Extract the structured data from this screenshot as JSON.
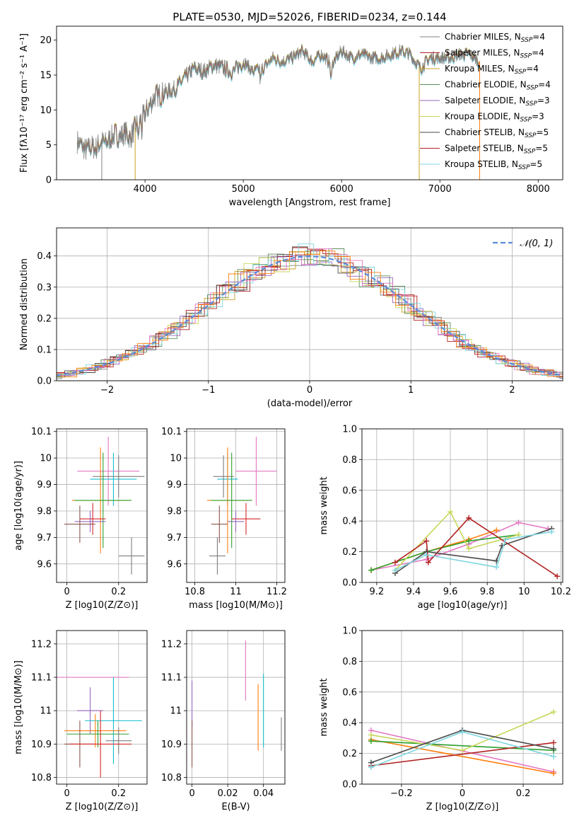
{
  "figure": {
    "title": "PLATE=0530, MJD=52026, FIBERID=0234, z=0.144"
  },
  "colors": {
    "Chabrier MILES": "#1f77b4",
    "Salpeter MILES": "#ff7f0e",
    "Kroupa MILES": "#2ca02c",
    "Chabrier ELODIE": "#d62728",
    "Salpeter ELODIE": "#9467bd",
    "Kroupa ELODIE": "#8c564b",
    "Chabrier STELIB": "#e377c2",
    "Salpeter STELIB": "#7f7f7f",
    "Kroupa STELIB": "#17becf",
    "spectrum_gray": "#808080",
    "normal_curve": "#5b8bd9"
  },
  "chart_data": [
    {
      "id": "spectrum",
      "type": "line",
      "xlabel": "wavelength [Angstrom, rest frame]",
      "ylabel": "Flux [fλ10⁻¹⁷ erg cm⁻² s⁻¹ A⁻¹]",
      "xlim": [
        3100,
        8250
      ],
      "ylim": [
        0,
        22
      ],
      "xticks": [
        4000,
        5000,
        6000,
        7000,
        8000
      ],
      "yticks": [
        0,
        5,
        10,
        15,
        20
      ],
      "legend_position": "top-right",
      "legend": [
        "Chabrier MILES, N_SSP=4",
        "Salpeter MILES, N_SSP=4",
        "Kroupa MILES, N_SSP=4",
        "Chabrier ELODIE, N_SSP=4",
        "Salpeter ELODIE, N_SSP=3",
        "Kroupa ELODIE, N_SSP=3",
        "Chabrier STELIB, N_SSP=5",
        "Salpeter STELIB, N_SSP=5",
        "Kroupa STELIB, N_SSP=5"
      ],
      "legend_colors": [
        "#808080",
        "#b22222",
        "#c9a227",
        "#5a8f5a",
        "#9467bd",
        "#c8d65a",
        "#4a4a4a",
        "#b22222",
        "#7fd6e0"
      ],
      "spectrum": {
        "x": [
          3310,
          3350,
          3400,
          3450,
          3500,
          3550,
          3600,
          3650,
          3700,
          3750,
          3800,
          3850,
          3900,
          3950,
          4000,
          4100,
          4200,
          4300,
          4400,
          4500,
          4600,
          4700,
          4800,
          4900,
          5000,
          5100,
          5200,
          5300,
          5400,
          5500,
          5600,
          5700,
          5800,
          5900,
          6000,
          6100,
          6200,
          6300,
          6400,
          6500,
          6600,
          6700,
          6800,
          6900,
          7000,
          7100,
          7200,
          7300,
          7400
        ],
        "y": [
          5.5,
          5.0,
          4.2,
          4.8,
          4.5,
          5.5,
          5.2,
          6.0,
          6.5,
          6.2,
          6.8,
          6.0,
          7.5,
          8.5,
          9.5,
          12.0,
          12.5,
          13.0,
          14.5,
          16.0,
          15.5,
          16.5,
          16.0,
          15.5,
          17.0,
          15.5,
          16.0,
          17.5,
          17.0,
          17.5,
          18.5,
          17.0,
          18.0,
          16.5,
          18.5,
          17.5,
          18.0,
          17.5,
          17.5,
          18.0,
          18.5,
          18.0,
          16.0,
          17.5,
          17.5,
          17.5,
          18.0,
          18.0,
          17.0
        ]
      }
    },
    {
      "id": "residuals",
      "type": "line",
      "xlabel": "(data-model)/error",
      "ylabel": "Normed distribution",
      "xlim": [
        -2.5,
        2.5
      ],
      "ylim": [
        0,
        0.49
      ],
      "xticks": [
        -2,
        -1,
        0,
        1,
        2
      ],
      "yticks": [
        0.0,
        0.1,
        0.2,
        0.3,
        0.4
      ],
      "grid": true,
      "legend": [
        "𝒩(0, 1)"
      ],
      "legend_position": "top-right",
      "normal": {
        "mean": 0,
        "sigma": 1
      }
    },
    {
      "id": "age-vs-Z",
      "type": "scatter",
      "xlabel": "Z [log10(Z/Z⊙)]",
      "ylabel": "age  [log10(age/yr)]",
      "xlim": [
        -0.04,
        0.31
      ],
      "ylim": [
        9.53,
        10.11
      ],
      "xticks": [
        0.0,
        0.2
      ],
      "yticks": [
        9.6,
        9.7,
        9.8,
        9.9,
        10.0,
        10.1
      ],
      "grid": true,
      "points": [
        {
          "series": "Chabrier STELIB",
          "x": 0.16,
          "xerr": 0.12,
          "y": 9.95,
          "yerr": 0.13
        },
        {
          "series": "Kroupa STELIB",
          "x": 0.18,
          "xerr": 0.09,
          "y": 9.92,
          "yerr": 0.1
        },
        {
          "series": "Salpeter STELIB",
          "x": 0.2,
          "xerr": 0.1,
          "y": 9.93,
          "yerr": 0.08
        },
        {
          "series": "Salpeter MILES",
          "x": 0.13,
          "xerr": 0.11,
          "y": 9.84,
          "yerr": 0.2
        },
        {
          "series": "Kroupa MILES",
          "x": 0.14,
          "xerr": 0.11,
          "y": 9.84,
          "yerr": 0.18
        },
        {
          "series": "Chabrier ELODIE",
          "x": 0.1,
          "xerr": 0.05,
          "y": 9.77,
          "yerr": 0.06
        },
        {
          "series": "Salpeter ELODIE",
          "x": 0.09,
          "xerr": 0.06,
          "y": 9.76,
          "yerr": 0.04
        },
        {
          "series": "Kroupa ELODIE",
          "x": 0.05,
          "xerr": 0.06,
          "y": 9.75,
          "yerr": 0.07
        },
        {
          "series": "Salpeter STELIB",
          "x": 0.25,
          "xerr": 0.05,
          "y": 9.63,
          "yerr": 0.07
        }
      ]
    },
    {
      "id": "age-vs-mass",
      "type": "scatter",
      "xlabel": "mass [log10(M/M⊙)]",
      "ylabel": "",
      "xlim": [
        10.76,
        11.24
      ],
      "ylim": [
        9.53,
        10.11
      ],
      "xticks": [
        10.8,
        11.0,
        11.2
      ],
      "yticks": [
        9.6,
        9.7,
        9.8,
        9.9,
        10.0,
        10.1
      ],
      "grid": true,
      "points": [
        {
          "series": "Chabrier STELIB",
          "x": 11.1,
          "xerr": 0.1,
          "y": 9.95,
          "yerr": 0.13
        },
        {
          "series": "Kroupa STELIB",
          "x": 10.96,
          "xerr": 0.05,
          "y": 9.92,
          "yerr": 0.1
        },
        {
          "series": "Salpeter STELIB",
          "x": 10.94,
          "xerr": 0.05,
          "y": 9.93,
          "yerr": 0.08
        },
        {
          "series": "Salpeter MILES",
          "x": 10.96,
          "xerr": 0.1,
          "y": 9.84,
          "yerr": 0.2
        },
        {
          "series": "Kroupa MILES",
          "x": 10.98,
          "xerr": 0.1,
          "y": 9.84,
          "yerr": 0.18
        },
        {
          "series": "Chabrier ELODIE",
          "x": 11.05,
          "xerr": 0.07,
          "y": 9.77,
          "yerr": 0.06
        },
        {
          "series": "Salpeter ELODIE",
          "x": 11.0,
          "xerr": 0.04,
          "y": 9.76,
          "yerr": 0.04
        },
        {
          "series": "Kroupa ELODIE",
          "x": 10.92,
          "xerr": 0.04,
          "y": 9.75,
          "yerr": 0.07
        },
        {
          "series": "Salpeter STELIB",
          "x": 10.91,
          "xerr": 0.04,
          "y": 9.63,
          "yerr": 0.07
        }
      ]
    },
    {
      "id": "weight-vs-age",
      "type": "line",
      "xlabel": "age  [log10(age/yr)]",
      "ylabel": "mass weight",
      "xlim": [
        9.12,
        10.21
      ],
      "ylim": [
        0,
        1
      ],
      "xticks": [
        9.2,
        9.4,
        9.6,
        9.8,
        10.0,
        10.2
      ],
      "yticks": [
        0.0,
        0.2,
        0.4,
        0.6,
        0.8,
        1.0
      ],
      "grid": true,
      "series": [
        {
          "color": "#e377c2",
          "x": [
            9.17,
            9.47,
            9.7,
            9.97,
            10.13
          ],
          "y": [
            0.08,
            0.15,
            0.25,
            0.39,
            0.35
          ]
        },
        {
          "color": "#ff7f0e",
          "x": [
            9.17,
            9.47,
            9.7,
            9.85
          ],
          "y": [
            0.08,
            0.2,
            0.28,
            0.34
          ]
        },
        {
          "color": "#2ca02c",
          "x": [
            9.17,
            9.47,
            9.7,
            9.97
          ],
          "y": [
            0.08,
            0.2,
            0.27,
            0.31
          ]
        },
        {
          "color": "#c8d65a",
          "x": [
            9.3,
            9.6,
            9.7,
            9.97
          ],
          "y": [
            0.08,
            0.46,
            0.22,
            0.31
          ]
        },
        {
          "color": "#b22222",
          "x": [
            9.3,
            9.47,
            9.48,
            9.7,
            10.18
          ],
          "y": [
            0.13,
            0.27,
            0.13,
            0.42,
            0.04
          ]
        },
        {
          "color": "#4a4a4a",
          "x": [
            9.3,
            9.47,
            9.85,
            9.88,
            10.15
          ],
          "y": [
            0.06,
            0.2,
            0.14,
            0.24,
            0.35
          ]
        },
        {
          "color": "#7fd6e0",
          "x": [
            9.3,
            9.47,
            9.85,
            9.9,
            10.15
          ],
          "y": [
            0.08,
            0.18,
            0.1,
            0.28,
            0.33
          ]
        }
      ]
    },
    {
      "id": "mass-vs-Z",
      "type": "scatter",
      "xlabel": "Z [log10(Z/Z⊙)]",
      "ylabel": "mass [log10(M/M⊙)]",
      "xlim": [
        -0.04,
        0.31
      ],
      "ylim": [
        10.78,
        11.24
      ],
      "xticks": [
        0.0,
        0.2
      ],
      "yticks": [
        10.8,
        10.9,
        11.0,
        11.1,
        11.2
      ],
      "grid": true,
      "points": [
        {
          "series": "Chabrier STELIB",
          "x": 0.1,
          "xerr": 0.14,
          "y": 11.1,
          "yerr": 0.0
        },
        {
          "series": "Salpeter ELODIE",
          "x": 0.09,
          "xerr": 0.05,
          "y": 11.0,
          "yerr": 0.07
        },
        {
          "series": "Kroupa STELIB",
          "x": 0.18,
          "xerr": 0.11,
          "y": 10.97,
          "yerr": 0.13
        },
        {
          "series": "Salpeter MILES",
          "x": 0.11,
          "xerr": 0.12,
          "y": 10.94,
          "yerr": 0.05
        },
        {
          "series": "Kroupa MILES",
          "x": 0.12,
          "xerr": 0.12,
          "y": 10.93,
          "yerr": 0.04
        },
        {
          "series": "Salpeter STELIB",
          "x": 0.2,
          "xerr": 0.05,
          "y": 10.91,
          "yerr": 0.04
        },
        {
          "series": "Kroupa ELODIE",
          "x": 0.05,
          "xerr": 0.06,
          "y": 10.9,
          "yerr": 0.07
        },
        {
          "series": "Chabrier ELODIE",
          "x": 0.13,
          "xerr": 0.12,
          "y": 10.9,
          "yerr": 0.1
        }
      ]
    },
    {
      "id": "mass-vs-ebv",
      "type": "scatter",
      "xlabel": "E(B-V)",
      "ylabel": "",
      "xlim": [
        -0.003,
        0.052
      ],
      "ylim": [
        10.78,
        11.24
      ],
      "xticks": [
        0.0,
        0.02,
        0.04
      ],
      "yticks": [
        10.8,
        10.9,
        11.0,
        11.1,
        11.2
      ],
      "grid": true,
      "points": [
        {
          "series": "Chabrier STELIB",
          "x": 0.03,
          "y": 11.12,
          "yerr": 0.09
        },
        {
          "series": "Salpeter ELODIE",
          "x": 0.0,
          "y": 11.02,
          "yerr": 0.07
        },
        {
          "series": "Kroupa ELODIE",
          "x": 0.0,
          "y": 10.9,
          "yerr": 0.07
        },
        {
          "series": "Salpeter MILES",
          "x": 0.037,
          "y": 10.98,
          "yerr": 0.1
        },
        {
          "series": "Kroupa STELIB",
          "x": 0.04,
          "y": 11.0,
          "yerr": 0.11
        },
        {
          "series": "Salpeter STELIB",
          "x": 0.05,
          "y": 10.93,
          "yerr": 0.05
        }
      ]
    },
    {
      "id": "weight-vs-Z",
      "type": "line",
      "xlabel": "Z [log10(Z/Z⊙)]",
      "ylabel": "mass weight",
      "xlim": [
        -0.33,
        0.33
      ],
      "ylim": [
        0,
        1
      ],
      "xticks": [
        -0.2,
        0.0,
        0.2
      ],
      "yticks": [
        0.0,
        0.2,
        0.4,
        0.6,
        0.8,
        1.0
      ],
      "grid": true,
      "series": [
        {
          "color": "#e377c2",
          "x": [
            -0.3,
            0.3
          ],
          "y": [
            0.35,
            0.08
          ]
        },
        {
          "color": "#ff7f0e",
          "x": [
            -0.3,
            0.3
          ],
          "y": [
            0.29,
            0.07
          ]
        },
        {
          "color": "#2ca02c",
          "x": [
            -0.3,
            0.3
          ],
          "y": [
            0.28,
            0.22
          ]
        },
        {
          "color": "#c8d65a",
          "x": [
            -0.3,
            0.0,
            0.3
          ],
          "y": [
            0.32,
            0.22,
            0.47
          ]
        },
        {
          "color": "#b22222",
          "x": [
            -0.3,
            0.3
          ],
          "y": [
            0.12,
            0.27
          ]
        },
        {
          "color": "#4a4a4a",
          "x": [
            -0.3,
            0.0,
            0.3
          ],
          "y": [
            0.14,
            0.35,
            0.23
          ]
        },
        {
          "color": "#7fd6e0",
          "x": [
            -0.3,
            0.0,
            0.3
          ],
          "y": [
            0.11,
            0.34,
            0.18
          ]
        }
      ]
    }
  ]
}
